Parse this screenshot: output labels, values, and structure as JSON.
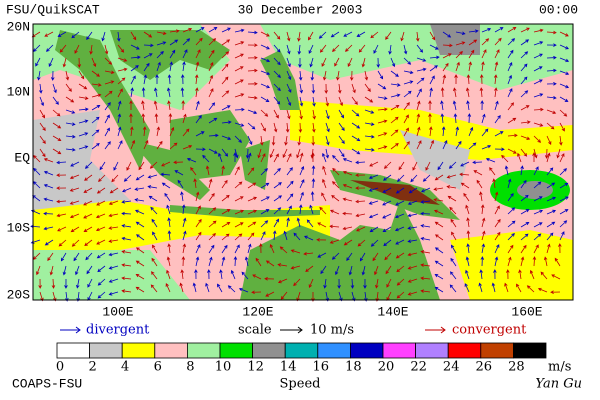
{
  "header": {
    "title": "FSU/QuikSCAT",
    "date": "30 December 2003",
    "time": "00:00"
  },
  "map": {
    "lat_labels": [
      "20N",
      "10N",
      "EQ",
      "10S",
      "20S"
    ],
    "lon_labels": [
      "100E",
      "120E",
      "140E",
      "160E"
    ]
  },
  "legend": {
    "divergent": "divergent",
    "scale": "scale",
    "scale_value": "10 m/s",
    "convergent": "convergent"
  },
  "colorbar": {
    "ticks": [
      0,
      2,
      4,
      6,
      8,
      10,
      12,
      14,
      16,
      18,
      20,
      22,
      24,
      26,
      28
    ],
    "unit": "m/s",
    "label": "Speed",
    "colors": [
      "#ffffff",
      "#c8c8c8",
      "#ffff00",
      "#ffc0c0",
      "#a0f0a0",
      "#00e000",
      "#909090",
      "#00b0b0",
      "#3090ff",
      "#0000c0",
      "#ff40ff",
      "#b080ff",
      "#ff0000",
      "#c04000",
      "#000000"
    ]
  },
  "footer": {
    "left": "COAPS-FSU",
    "right": "Yan Gu"
  }
}
